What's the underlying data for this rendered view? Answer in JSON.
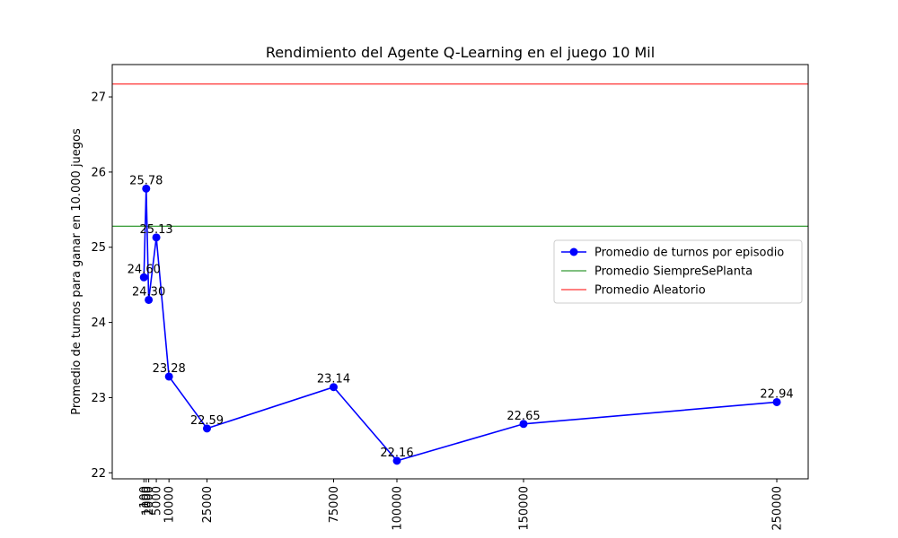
{
  "chart_data": {
    "type": "line",
    "title": "Rendimiento del Agente Q-Learning en el juego 10 Mil",
    "xlabel": "",
    "ylabel": "Promedio de turnos para ganar en 10.000 juegos",
    "x": [
      100,
      1000,
      2000,
      5000,
      10000,
      25000,
      75000,
      100000,
      150000,
      250000
    ],
    "x_tick_labels": [
      "100",
      "1000",
      "2000",
      "5000",
      "10000",
      "25000",
      "75000",
      "100000",
      "150000",
      "250000"
    ],
    "y_ticks": [
      22,
      23,
      24,
      25,
      26,
      27
    ],
    "xlim": [
      -12400,
      262400
    ],
    "ylim": [
      21.92,
      27.43
    ],
    "grid": false,
    "legend_position": "center-right",
    "series": [
      {
        "name": "Promedio de turnos por episodio",
        "color": "#0000ff",
        "marker": "circle",
        "values": [
          24.6,
          25.78,
          24.3,
          25.13,
          23.28,
          22.59,
          23.14,
          22.16,
          22.65,
          22.94
        ],
        "labels": [
          "24.60",
          "25.78",
          "24.30",
          "25.13",
          "23.28",
          "22.59",
          "23.14",
          "22.16",
          "22.65",
          "22.94"
        ]
      }
    ],
    "reference_lines": [
      {
        "name": "Promedio SiempreSePlanta",
        "value": 25.28,
        "color": "#008000"
      },
      {
        "name": "Promedio Aleatorio",
        "value": 27.17,
        "color": "#ff0000"
      }
    ]
  }
}
